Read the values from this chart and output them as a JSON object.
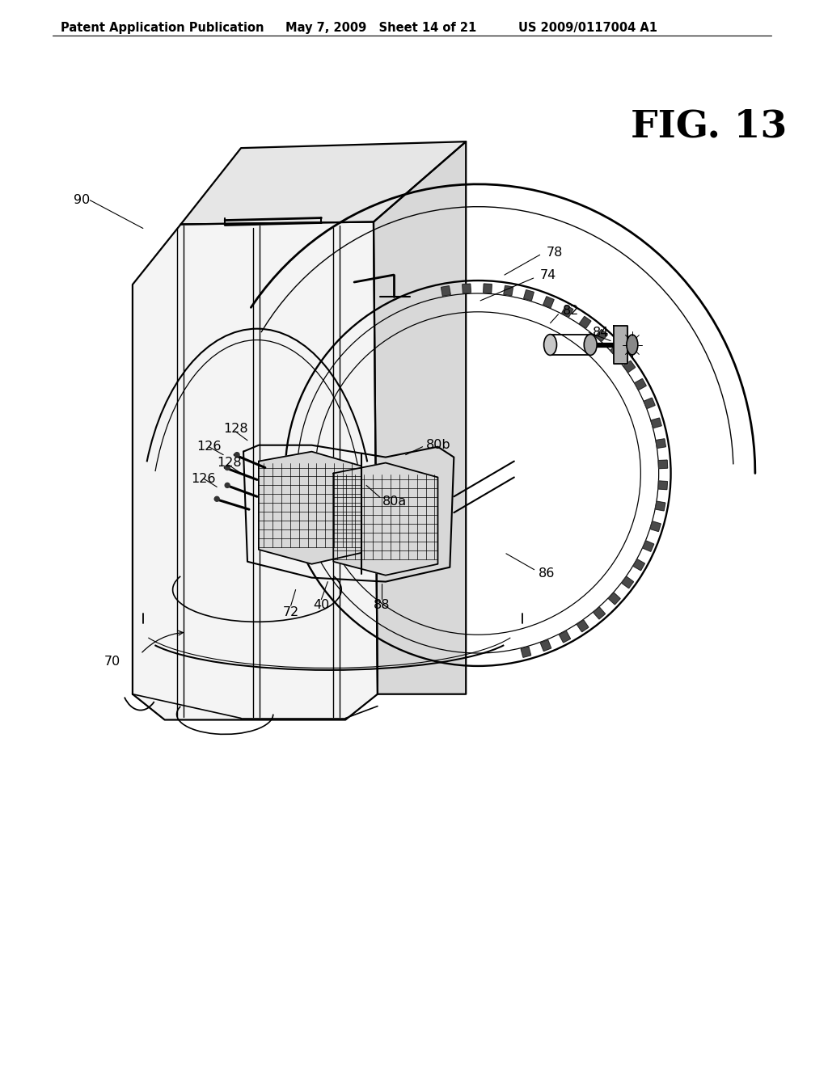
{
  "background_color": "#ffffff",
  "header_left": "Patent Application Publication",
  "header_mid": "May 7, 2009   Sheet 14 of 21",
  "header_right": "US 2009/0117004 A1",
  "fig_label": "FIG. 13",
  "line_color": "#000000",
  "line_width": 1.4,
  "header_fontsize": 10.5,
  "ref_fontsize": 11.5,
  "fig_label_fontsize": 34
}
